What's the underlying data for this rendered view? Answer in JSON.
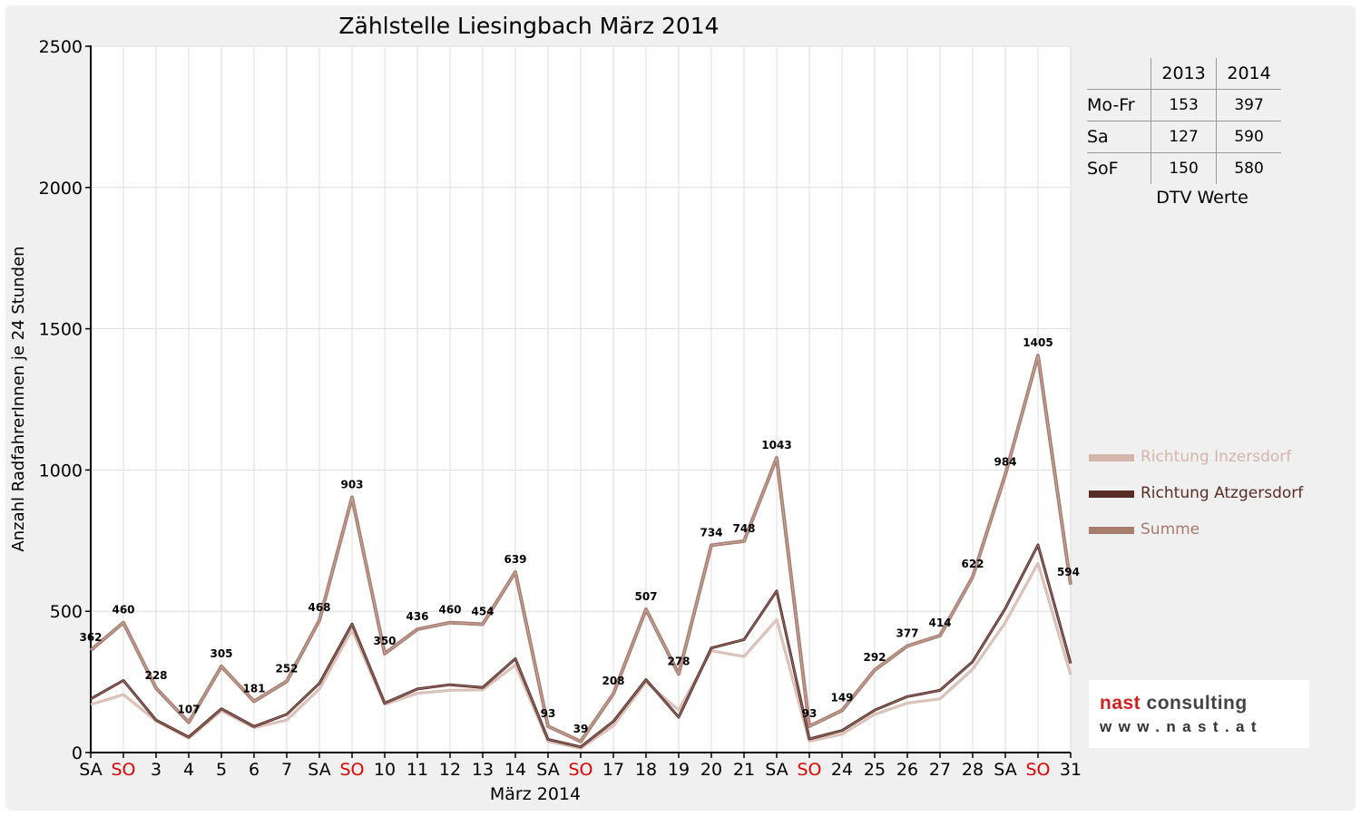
{
  "chart_data": {
    "type": "line",
    "title": "Zählstelle Liesingbach März 2014",
    "xlabel": "März 2014",
    "ylabel": "Anzahl RadfahrerInnen je 24 Stunden",
    "ylim": [
      0,
      2500
    ],
    "yticks": [
      "0",
      "500",
      "1000",
      "1500",
      "2000",
      "2500"
    ],
    "grid": true,
    "legend_position": "right",
    "categories": [
      "SA",
      "SO",
      "3",
      "4",
      "5",
      "6",
      "7",
      "SA",
      "SO",
      "10",
      "11",
      "12",
      "13",
      "14",
      "SA",
      "SO",
      "17",
      "18",
      "19",
      "20",
      "21",
      "SA",
      "SO",
      "24",
      "25",
      "26",
      "27",
      "28",
      "SA",
      "SO",
      "31"
    ],
    "weekend_color": "#dd0000",
    "series": [
      {
        "name": "Richtung Inzersdorf",
        "color": "#d4b5a9",
        "values": [
          170,
          205,
          112,
          50,
          148,
          88,
          115,
          225,
          435,
          170,
          210,
          220,
          222,
          310,
          40,
          15,
          95,
          250,
          150,
          360,
          340,
          470,
          40,
          65,
          135,
          175,
          190,
          295,
          460,
          670,
          275
        ]
      },
      {
        "name": "Richtung Atzgersdorf",
        "color": "#5a2c25",
        "values": [
          190,
          255,
          115,
          55,
          155,
          92,
          135,
          245,
          455,
          175,
          225,
          240,
          230,
          332,
          47,
          20,
          110,
          258,
          125,
          370,
          400,
          572,
          48,
          78,
          150,
          198,
          220,
          322,
          510,
          735,
          315
        ]
      },
      {
        "name": "Summe",
        "color": "#a87d6f",
        "values": [
          362,
          460,
          228,
          107,
          305,
          181,
          252,
          468,
          903,
          350,
          436,
          460,
          454,
          639,
          93,
          39,
          208,
          507,
          278,
          734,
          748,
          1043,
          93,
          149,
          292,
          377,
          414,
          622,
          984,
          1405,
          594
        ]
      }
    ],
    "data_labels": [
      "362",
      "460",
      "228",
      "107",
      "305",
      "181",
      "252",
      "468",
      "903",
      "350",
      "436",
      "460",
      "454",
      "639",
      "93",
      "39",
      "208",
      "507",
      "278",
      "734",
      "748",
      "1043",
      "93",
      "149",
      "292",
      "377",
      "414",
      "622",
      "984",
      "1405",
      "594"
    ]
  },
  "dtv_table": {
    "columns": [
      "2013",
      "2014"
    ],
    "rows": [
      {
        "label": "Mo-Fr",
        "v2013": "153",
        "v2014": "397"
      },
      {
        "label": "Sa",
        "v2013": "127",
        "v2014": "590"
      },
      {
        "label": "SoF",
        "v2013": "150",
        "v2014": "580"
      }
    ],
    "caption": "DTV Werte"
  },
  "logo": {
    "word1": "nast",
    "word2": "consulting",
    "url": "www.nast.at"
  }
}
